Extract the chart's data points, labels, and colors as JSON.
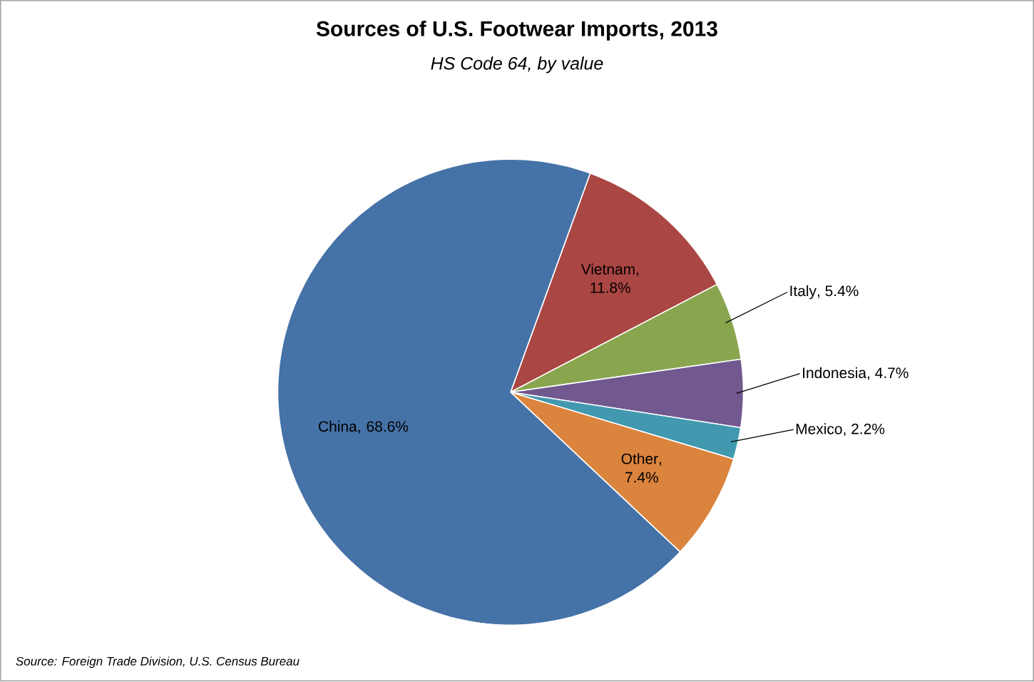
{
  "chart_data": {
    "type": "pie",
    "title": "Sources of U.S. Footwear Imports, 2013",
    "subtitle": "HS Code 64, by value",
    "categories": [
      "Vietnam",
      "Italy",
      "Indonesia",
      "Mexico",
      "Other",
      "China"
    ],
    "values": [
      11.8,
      5.4,
      4.7,
      2.2,
      7.4,
      68.6
    ],
    "value_labels": [
      ", 11.8%",
      ", 5.4%",
      ", 4.7%",
      ", 2.2%",
      ", 7.4%",
      ", 68.6%"
    ],
    "colors": [
      "#aa4643",
      "#89a54e",
      "#71588f",
      "#4198af",
      "#db843d",
      "#4572a7"
    ],
    "annotations": [
      "Source:  Foreign Trade Division, U.S. Census Bureau"
    ]
  }
}
